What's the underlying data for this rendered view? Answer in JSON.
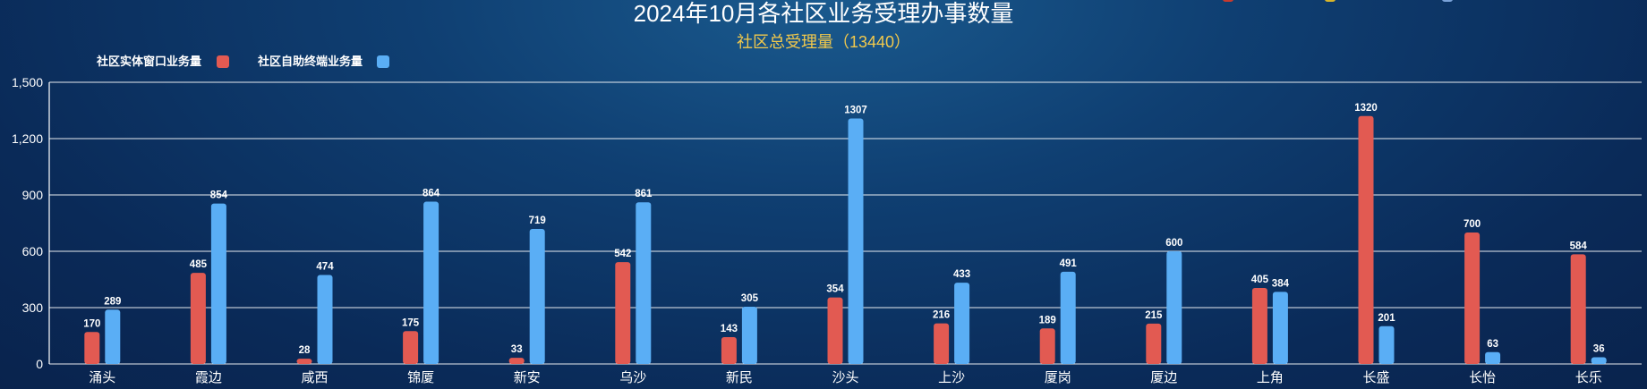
{
  "colors": {
    "window": "#e25a52",
    "self_service": "#5aaef5",
    "grid": "#ffffff",
    "title": "#ffffff",
    "subtitle": "#f2c94c"
  },
  "chart_data": {
    "type": "bar",
    "title": "2024年10月各社区业务受理办事数量",
    "subtitle": "社区总受理量（13440）",
    "xlabel": "",
    "ylabel": "",
    "ylim": [
      0,
      1500
    ],
    "yticks": [
      0,
      300,
      600,
      900,
      1200,
      1500
    ],
    "ytick_labels": [
      "0",
      "300",
      "600",
      "900",
      "1,200",
      "1,500"
    ],
    "grid": true,
    "legend_position": "top-left",
    "categories": [
      "涌头",
      "霞边",
      "咸西",
      "锦厦",
      "新安",
      "乌沙",
      "新民",
      "沙头",
      "上沙",
      "厦岗",
      "厦边",
      "上角",
      "长盛",
      "长怡",
      "长乐"
    ],
    "series": [
      {
        "name": "社区实体窗口业务量",
        "color": "#e25a52",
        "values": [
          170,
          485,
          28,
          175,
          33,
          542,
          143,
          354,
          216,
          189,
          215,
          405,
          1320,
          700,
          584
        ]
      },
      {
        "name": "社区自助终端业务量",
        "color": "#5aaef5",
        "values": [
          289,
          854,
          474,
          864,
          719,
          861,
          305,
          1307,
          433,
          491,
          600,
          384,
          201,
          63,
          36
        ]
      }
    ]
  }
}
